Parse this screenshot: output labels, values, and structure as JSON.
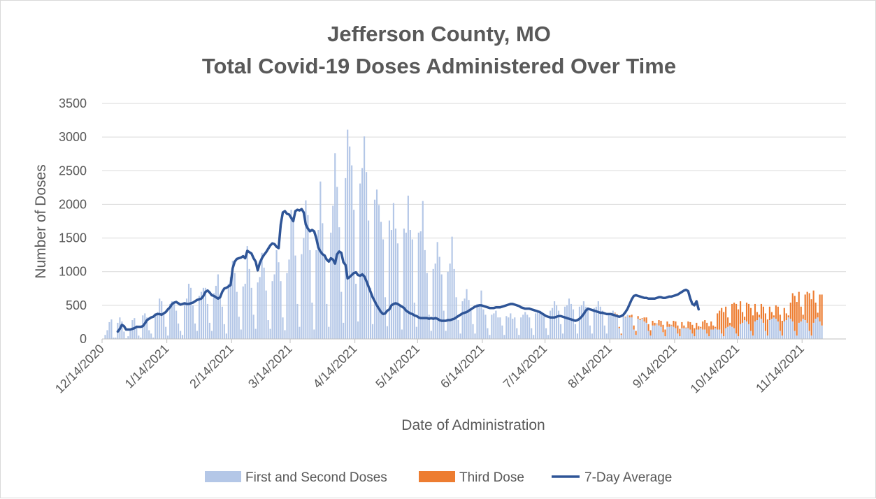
{
  "chart_data": {
    "type": "bar",
    "title": "Jefferson County, MO",
    "subtitle": "Total Covid-19 Doses Administered Over Time",
    "xlabel": "Date of Administration",
    "ylabel": "Number of Doses",
    "ylim": [
      0,
      3500
    ],
    "yticks": [
      0,
      500,
      1000,
      1500,
      2000,
      2500,
      3000,
      3500
    ],
    "x_tick_labels": [
      "12/14/2020",
      "1/14/2021",
      "2/14/2021",
      "3/14/2021",
      "4/14/2021",
      "5/14/2021",
      "6/14/2021",
      "7/14/2021",
      "8/14/2021",
      "9/14/2021",
      "10/14/2021",
      "11/14/2021"
    ],
    "x_range": [
      "12/14/2020",
      "12/4/2021"
    ],
    "grid": "horizontal",
    "legend_position": "bottom",
    "stacked": true,
    "colors": {
      "first_second": "#b4c7e7",
      "third": "#ed7d31",
      "average": "#2f5597",
      "grid": "#d9d9d9",
      "axis": "#bfbfbf"
    },
    "daily_series": {
      "start_date": "12/14/2020",
      "first_and_second": [
        0,
        60,
        130,
        250,
        290,
        20,
        20,
        240,
        320,
        260,
        110,
        10,
        40,
        120,
        280,
        310,
        200,
        50,
        20,
        350,
        380,
        320,
        130,
        80,
        20,
        380,
        400,
        600,
        560,
        400,
        180,
        50,
        520,
        560,
        520,
        420,
        230,
        120,
        60,
        530,
        600,
        820,
        760,
        500,
        230,
        120,
        640,
        700,
        760,
        760,
        520,
        240,
        120,
        680,
        790,
        960,
        640,
        480,
        220,
        80,
        820,
        920,
        1160,
        980,
        700,
        330,
        140,
        780,
        820,
        1380,
        1040,
        760,
        360,
        150,
        840,
        920,
        1280,
        1060,
        720,
        280,
        150,
        860,
        960,
        1320,
        1140,
        860,
        320,
        130,
        980,
        1180,
        1920,
        1820,
        1240,
        520,
        180,
        1260,
        1500,
        2060,
        1840,
        1320,
        540,
        140,
        1320,
        1620,
        2340,
        1720,
        1240,
        520,
        180,
        1580,
        1980,
        2760,
        2260,
        1660,
        700,
        240,
        2390,
        3110,
        2860,
        2580,
        1920,
        820,
        260,
        2310,
        2540,
        3010,
        2480,
        1760,
        760,
        220,
        2070,
        2220,
        1990,
        1740,
        1480,
        620,
        190,
        1760,
        1620,
        2020,
        1640,
        1420,
        480,
        140,
        1640,
        1580,
        2130,
        1620,
        1480,
        540,
        180,
        1580,
        1600,
        2050,
        1320,
        980,
        360,
        120,
        1040,
        1120,
        1440,
        1220,
        960,
        420,
        120,
        1000,
        1120,
        1520,
        1040,
        620,
        280,
        80,
        560,
        600,
        740,
        580,
        420,
        220,
        80,
        520,
        520,
        720,
        440,
        360,
        160,
        60,
        360,
        380,
        420,
        320,
        320,
        200,
        60,
        340,
        320,
        380,
        300,
        320,
        160,
        60,
        320,
        360,
        400,
        360,
        320,
        160,
        60,
        380,
        400,
        420,
        360,
        340,
        160,
        60,
        420,
        460,
        560,
        500,
        420,
        220,
        80,
        480,
        500,
        600,
        520,
        440,
        220,
        80,
        480,
        500,
        560,
        480,
        440,
        200,
        80,
        460,
        480,
        560,
        480,
        420,
        200,
        80,
        380,
        380,
        420,
        380,
        360,
        160,
        60,
        340,
        320,
        360,
        320,
        320,
        140,
        60,
        300,
        280,
        300,
        260,
        240,
        120,
        50,
        200,
        200,
        220,
        200,
        180,
        100,
        40,
        180,
        180,
        200,
        180,
        160,
        80,
        40,
        160,
        160,
        160,
        160,
        140,
        80,
        40,
        140,
        140,
        160,
        140,
        140,
        80,
        40,
        140,
        140,
        160,
        140,
        140,
        80,
        40,
        160,
        180,
        200,
        180,
        160,
        80,
        40,
        220,
        240,
        280,
        260,
        220,
        120,
        50,
        260,
        280,
        320,
        300,
        240,
        120,
        50,
        280,
        300,
        320,
        300,
        260,
        120,
        50,
        260,
        280,
        320,
        300,
        260,
        120,
        50,
        240,
        260,
        300,
        280,
        240,
        120,
        50,
        240,
        300,
        320,
        260,
        200
      ],
      "third": [
        0,
        0,
        0,
        0,
        0,
        0,
        0,
        0,
        0,
        0,
        0,
        0,
        0,
        0,
        0,
        0,
        0,
        0,
        0,
        0,
        0,
        0,
        0,
        0,
        0,
        0,
        0,
        0,
        0,
        0,
        0,
        0,
        0,
        0,
        0,
        0,
        0,
        0,
        0,
        0,
        0,
        0,
        0,
        0,
        0,
        0,
        0,
        0,
        0,
        0,
        0,
        0,
        0,
        0,
        0,
        0,
        0,
        0,
        0,
        0,
        0,
        0,
        0,
        0,
        0,
        0,
        0,
        0,
        0,
        0,
        0,
        0,
        0,
        0,
        0,
        0,
        0,
        0,
        0,
        0,
        0,
        0,
        0,
        0,
        0,
        0,
        0,
        0,
        0,
        0,
        0,
        0,
        0,
        0,
        0,
        0,
        0,
        0,
        0,
        0,
        0,
        0,
        0,
        0,
        0,
        0,
        0,
        0,
        0,
        0,
        0,
        0,
        0,
        0,
        0,
        0,
        0,
        0,
        0,
        0,
        0,
        0,
        0,
        0,
        0,
        0,
        0,
        0,
        0,
        0,
        0,
        0,
        0,
        0,
        0,
        0,
        0,
        0,
        0,
        0,
        0,
        0,
        0,
        0,
        0,
        0,
        0,
        0,
        0,
        0,
        0,
        0,
        0,
        0,
        0,
        0,
        0,
        0,
        0,
        0,
        0,
        0,
        0,
        0,
        0,
        0,
        0,
        0,
        0,
        0,
        0,
        0,
        0,
        0,
        0,
        0,
        0,
        0,
        0,
        0,
        0,
        0,
        0,
        0,
        0,
        0,
        0,
        0,
        0,
        0,
        0,
        0,
        0,
        0,
        0,
        0,
        0,
        0,
        0,
        0,
        0,
        0,
        0,
        0,
        0,
        0,
        0,
        0,
        0,
        0,
        0,
        0,
        0,
        0,
        0,
        0,
        0,
        0,
        0,
        0,
        0,
        0,
        0,
        0,
        0,
        0,
        0,
        0,
        0,
        0,
        0,
        0,
        0,
        0,
        0,
        0,
        0,
        0,
        0,
        0,
        0,
        0,
        0,
        0,
        0,
        10,
        10,
        20,
        20,
        10,
        10,
        0,
        30,
        40,
        60,
        60,
        40,
        20,
        10,
        60,
        80,
        100,
        80,
        70,
        40,
        10,
        80,
        90,
        110,
        100,
        80,
        40,
        10,
        90,
        100,
        120,
        110,
        90,
        40,
        10,
        100,
        110,
        130,
        120,
        100,
        50,
        20,
        120,
        140,
        160,
        150,
        120,
        60,
        20,
        240,
        280,
        380,
        360,
        320,
        140,
        40,
        340,
        380,
        440,
        400,
        340,
        160,
        50,
        280,
        300,
        340,
        300,
        260,
        120,
        40,
        220,
        240,
        260,
        240,
        200,
        100,
        30,
        200,
        220,
        240,
        220,
        200,
        100,
        30,
        240,
        420,
        520,
        500,
        460,
        220,
        60,
        380,
        460,
        560,
        540,
        480,
        240,
        70,
        400,
        460,
        580,
        540,
        480,
        240,
        70,
        420,
        460,
        560,
        520,
        460,
        220,
        70,
        440,
        480,
        580,
        560,
        520,
        260,
        80,
        480,
        560,
        620,
        660,
        760,
        230
      ]
    },
    "average_line": {
      "start_index": 7,
      "values": [
        110,
        150,
        210,
        190,
        140,
        140,
        140,
        150,
        160,
        180,
        180,
        180,
        190,
        230,
        280,
        300,
        320,
        330,
        360,
        370,
        370,
        360,
        380,
        400,
        440,
        470,
        520,
        540,
        550,
        530,
        510,
        520,
        530,
        520,
        520,
        530,
        540,
        560,
        580,
        590,
        600,
        640,
        700,
        720,
        690,
        650,
        640,
        620,
        600,
        620,
        700,
        750,
        760,
        780,
        800,
        1050,
        1150,
        1190,
        1200,
        1210,
        1230,
        1200,
        1310,
        1290,
        1270,
        1200,
        1150,
        1020,
        1130,
        1200,
        1250,
        1290,
        1340,
        1390,
        1420,
        1410,
        1370,
        1350,
        1700,
        1880,
        1900,
        1860,
        1850,
        1800,
        1750,
        1900,
        1920,
        1910,
        1930,
        1880,
        1700,
        1640,
        1600,
        1620,
        1600,
        1500,
        1360,
        1300,
        1260,
        1240,
        1180,
        1150,
        1200,
        1180,
        1120,
        1260,
        1300,
        1280,
        1140,
        1100,
        900,
        920,
        950,
        980,
        990,
        950,
        940,
        960,
        930,
        860,
        780,
        700,
        620,
        560,
        500,
        450,
        400,
        370,
        380,
        420,
        440,
        500,
        520,
        530,
        520,
        500,
        480,
        460,
        420,
        400,
        380,
        370,
        350,
        340,
        320,
        310,
        310,
        310,
        310,
        300,
        310,
        300,
        310,
        300,
        280,
        270,
        270,
        270,
        280,
        280,
        290,
        300,
        320,
        340,
        360,
        380,
        390,
        400,
        420,
        440,
        460,
        480,
        490,
        500,
        500,
        490,
        480,
        470,
        460,
        460,
        460,
        470,
        470,
        470,
        480,
        490,
        500,
        510,
        520,
        520,
        510,
        500,
        490,
        470,
        460,
        450,
        450,
        450,
        440,
        430,
        420,
        410,
        400,
        380,
        360,
        340,
        330,
        320,
        320,
        320,
        330,
        340,
        340,
        330,
        320,
        310,
        300,
        290,
        280,
        270,
        280,
        300,
        330,
        370,
        420,
        450,
        440,
        430,
        420,
        410,
        400,
        390,
        390,
        380,
        370,
        370,
        370,
        360,
        350,
        340,
        330,
        340,
        360,
        400,
        450,
        520,
        590,
        640,
        650,
        640,
        630,
        620,
        610,
        610,
        600,
        600,
        600,
        600,
        610,
        620,
        620,
        610,
        610,
        620,
        630,
        630,
        640,
        650,
        660,
        680,
        700,
        720,
        730,
        710,
        600,
        520,
        500,
        560,
        440
      ]
    }
  },
  "legend": [
    {
      "key": "first_second",
      "label": "First and Second Doses",
      "kind": "bar"
    },
    {
      "key": "third",
      "label": "Third Dose",
      "kind": "bar"
    },
    {
      "key": "average",
      "label": "7-Day Average",
      "kind": "line"
    }
  ]
}
